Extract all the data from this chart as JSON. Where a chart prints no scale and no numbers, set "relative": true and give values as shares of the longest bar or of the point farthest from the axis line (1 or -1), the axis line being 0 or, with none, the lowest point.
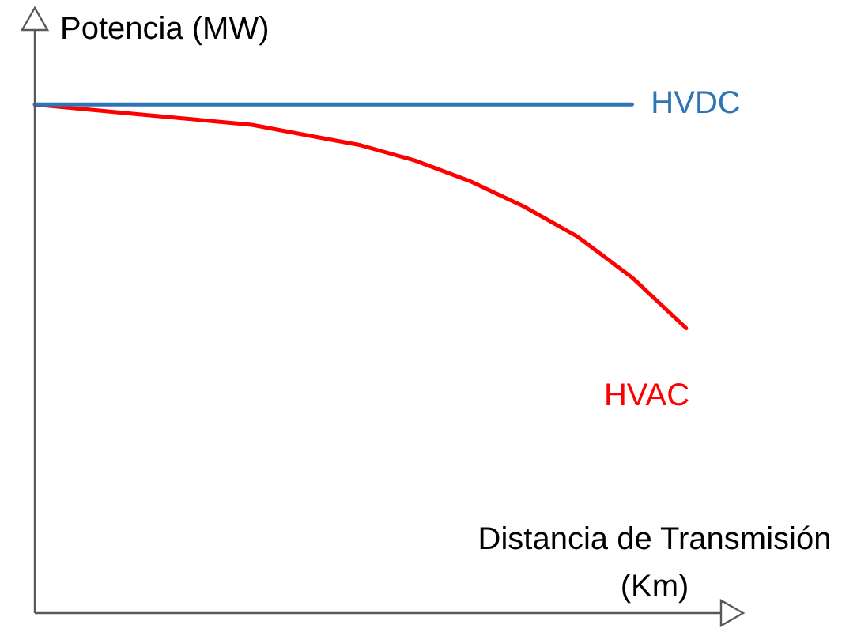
{
  "chart_data": {
    "type": "line",
    "relative": true,
    "xlabel": "Distancia de Transmisión (Km)",
    "ylabel": "Potencia (MW)",
    "legend": false,
    "marker": "none",
    "line_style": "solid",
    "categories": [
      null,
      null,
      null,
      null,
      null,
      null,
      null,
      null,
      null,
      null,
      null,
      null,
      null
    ],
    "series": [
      {
        "name": "HVDC",
        "color": "#2e75b6",
        "values": [
          1,
          1,
          1,
          1,
          1,
          1,
          1,
          1,
          1,
          1,
          1,
          1,
          null
        ]
      },
      {
        "name": "HVAC",
        "color": "#ff0000",
        "values": [
          1,
          0.99,
          0.98,
          0.97,
          0.96,
          0.94,
          0.92,
          0.89,
          0.85,
          0.8,
          0.74,
          0.66,
          0.56
        ]
      }
    ]
  }
}
